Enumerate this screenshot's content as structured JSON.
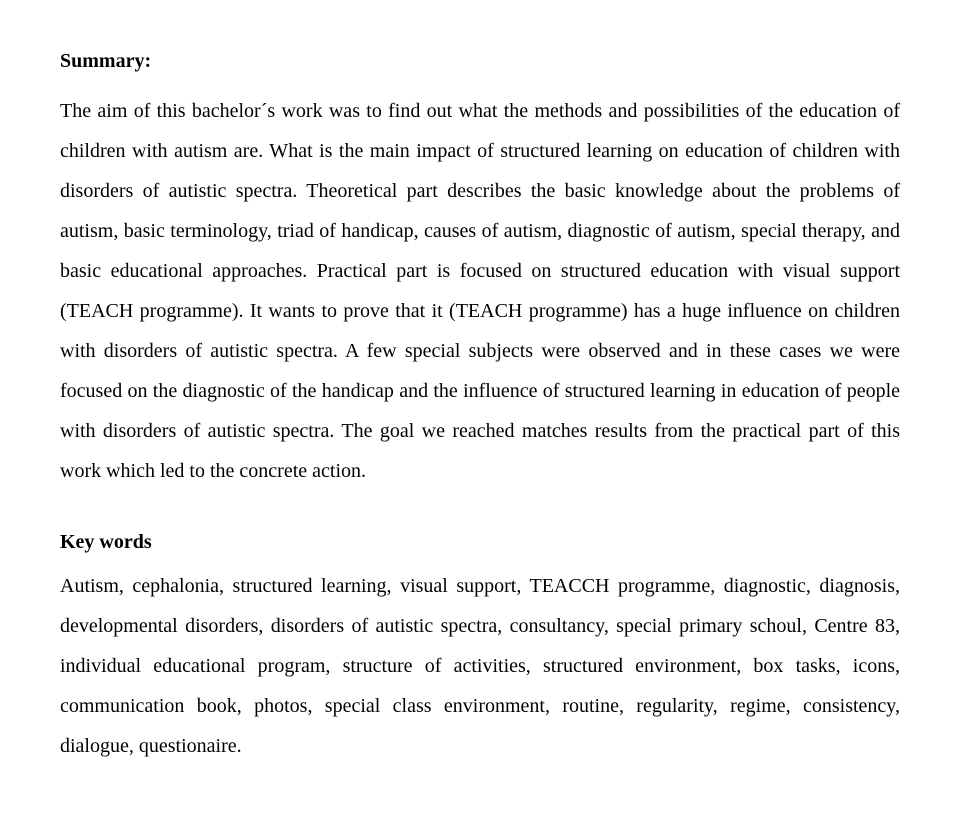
{
  "summary": {
    "heading": "Summary:",
    "body": "The aim of this bachelor´s work was to find out what the methods and possibilities of the education of children with autism are. What is the main impact of structured learning on education of children with disorders of autistic spectra. Theoretical part describes the basic knowledge about the problems of autism, basic terminology, triad of handicap, causes of autism, diagnostic of autism, special therapy, and basic educational approaches. Practical part is focused on structured education with visual support (TEACH programme). It wants to prove that it (TEACH programme) has a huge influence on children with disorders of autistic spectra. A few special subjects were observed and in these cases we were focused on the diagnostic of the handicap and the influence of structured learning in education of people with disorders of autistic spectra. The goal we reached  matches results from the practical part of this work which led to the concrete action."
  },
  "keywords": {
    "heading": "Key words",
    "body": "Autism, cephalonia, structured learning, visual support, TEACCH programme, diagnostic, diagnosis, developmental disorders, disorders of autistic spectra, consultancy, special primary schoul, Centre 83, individual educational program, structure of activities, structured environment, box tasks, icons, communication book, photos, special class environment, routine, regularity, regime, consistency, dialogue, questionaire."
  },
  "style": {
    "font_family": "Times New Roman",
    "heading_fontsize_pt": 15,
    "body_fontsize_pt": 15,
    "body_line_height": 2.0,
    "text_color": "#000000",
    "background_color": "#ffffff",
    "text_align": "justify"
  }
}
